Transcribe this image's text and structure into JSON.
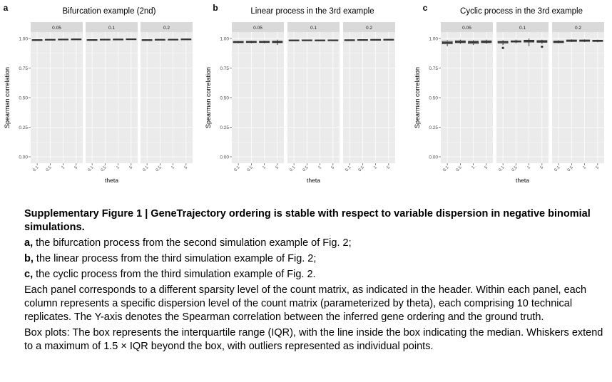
{
  "chart_data": [
    {
      "letter": "a",
      "type": "box",
      "title": "Bifurcation example (2nd)",
      "facets": [
        "0.05",
        "0.1",
        "0.2"
      ],
      "categories": [
        "0.1",
        "0.5",
        "1",
        "5"
      ],
      "xlabel": "theta",
      "ylabel": "Spearman correlation",
      "ylim": [
        0,
        1
      ],
      "yticks": [
        "0.00",
        "0.25",
        "0.50",
        "0.75",
        "1.00"
      ],
      "grid": true,
      "boxes": [
        [
          {
            "q1": 0.985,
            "median": 0.988,
            "q3": 0.99,
            "lo": 0.983,
            "hi": 0.992,
            "outliers": []
          },
          {
            "q1": 0.988,
            "median": 0.99,
            "q3": 0.993,
            "lo": 0.985,
            "hi": 0.995,
            "outliers": []
          },
          {
            "q1": 0.99,
            "median": 0.992,
            "q3": 0.995,
            "lo": 0.988,
            "hi": 0.997,
            "outliers": []
          },
          {
            "q1": 0.992,
            "median": 0.994,
            "q3": 0.996,
            "lo": 0.99,
            "hi": 0.998,
            "outliers": []
          }
        ],
        [
          {
            "q1": 0.986,
            "median": 0.989,
            "q3": 0.991,
            "lo": 0.984,
            "hi": 0.993,
            "outliers": []
          },
          {
            "q1": 0.989,
            "median": 0.991,
            "q3": 0.994,
            "lo": 0.986,
            "hi": 0.996,
            "outliers": []
          },
          {
            "q1": 0.991,
            "median": 0.993,
            "q3": 0.995,
            "lo": 0.989,
            "hi": 0.997,
            "outliers": []
          },
          {
            "q1": 0.993,
            "median": 0.995,
            "q3": 0.997,
            "lo": 0.991,
            "hi": 0.999,
            "outliers": []
          }
        ],
        [
          {
            "q1": 0.985,
            "median": 0.988,
            "q3": 0.99,
            "lo": 0.983,
            "hi": 0.992,
            "outliers": []
          },
          {
            "q1": 0.988,
            "median": 0.99,
            "q3": 0.993,
            "lo": 0.985,
            "hi": 0.995,
            "outliers": []
          },
          {
            "q1": 0.99,
            "median": 0.992,
            "q3": 0.994,
            "lo": 0.988,
            "hi": 0.996,
            "outliers": []
          },
          {
            "q1": 0.992,
            "median": 0.994,
            "q3": 0.996,
            "lo": 0.99,
            "hi": 0.998,
            "outliers": []
          }
        ]
      ]
    },
    {
      "letter": "b",
      "type": "box",
      "title": "Linear process in the 3rd example",
      "facets": [
        "0.05",
        "0.1",
        "0.2"
      ],
      "categories": [
        "0.1",
        "0.5",
        "1",
        "5"
      ],
      "xlabel": "theta",
      "ylabel": "Spearman correlation",
      "ylim": [
        0,
        1
      ],
      "yticks": [
        "0.00",
        "0.25",
        "0.50",
        "0.75",
        "1.00"
      ],
      "grid": true,
      "boxes": [
        [
          {
            "q1": 0.965,
            "median": 0.97,
            "q3": 0.975,
            "lo": 0.96,
            "hi": 0.98,
            "outliers": []
          },
          {
            "q1": 0.966,
            "median": 0.971,
            "q3": 0.976,
            "lo": 0.96,
            "hi": 0.981,
            "outliers": []
          },
          {
            "q1": 0.966,
            "median": 0.971,
            "q3": 0.976,
            "lo": 0.96,
            "hi": 0.981,
            "outliers": []
          },
          {
            "q1": 0.965,
            "median": 0.971,
            "q3": 0.977,
            "lo": 0.945,
            "hi": 0.99,
            "outliers": []
          }
        ],
        [
          {
            "q1": 0.982,
            "median": 0.985,
            "q3": 0.987,
            "lo": 0.98,
            "hi": 0.989,
            "outliers": []
          },
          {
            "q1": 0.983,
            "median": 0.986,
            "q3": 0.988,
            "lo": 0.98,
            "hi": 0.99,
            "outliers": []
          },
          {
            "q1": 0.983,
            "median": 0.985,
            "q3": 0.987,
            "lo": 0.981,
            "hi": 0.989,
            "outliers": []
          },
          {
            "q1": 0.983,
            "median": 0.986,
            "q3": 0.988,
            "lo": 0.981,
            "hi": 0.99,
            "outliers": []
          }
        ],
        [
          {
            "q1": 0.985,
            "median": 0.987,
            "q3": 0.989,
            "lo": 0.983,
            "hi": 0.991,
            "outliers": []
          },
          {
            "q1": 0.987,
            "median": 0.989,
            "q3": 0.991,
            "lo": 0.985,
            "hi": 0.993,
            "outliers": []
          },
          {
            "q1": 0.988,
            "median": 0.99,
            "q3": 0.992,
            "lo": 0.986,
            "hi": 0.994,
            "outliers": []
          },
          {
            "q1": 0.989,
            "median": 0.991,
            "q3": 0.993,
            "lo": 0.987,
            "hi": 0.995,
            "outliers": []
          }
        ]
      ]
    },
    {
      "letter": "c",
      "type": "box",
      "title": "Cyclic process in the 3rd example",
      "facets": [
        "0.05",
        "0.1",
        "0.2"
      ],
      "categories": [
        "0.1",
        "0.5",
        "1",
        "5"
      ],
      "xlabel": "theta",
      "ylabel": "Spearman correlation",
      "ylim": [
        0,
        1
      ],
      "yticks": [
        "0.00",
        "0.25",
        "0.50",
        "0.75",
        "1.00"
      ],
      "grid": true,
      "boxes": [
        [
          {
            "q1": 0.955,
            "median": 0.965,
            "q3": 0.975,
            "lo": 0.935,
            "hi": 0.985,
            "outliers": []
          },
          {
            "q1": 0.965,
            "median": 0.972,
            "q3": 0.98,
            "lo": 0.955,
            "hi": 0.99,
            "outliers": []
          },
          {
            "q1": 0.958,
            "median": 0.968,
            "q3": 0.976,
            "lo": 0.945,
            "hi": 0.985,
            "outliers": []
          },
          {
            "q1": 0.965,
            "median": 0.972,
            "q3": 0.98,
            "lo": 0.955,
            "hi": 0.99,
            "outliers": []
          }
        ],
        [
          {
            "q1": 0.962,
            "median": 0.97,
            "q3": 0.975,
            "lo": 0.945,
            "hi": 0.985,
            "outliers": [
              0.92
            ]
          },
          {
            "q1": 0.97,
            "median": 0.975,
            "q3": 0.98,
            "lo": 0.96,
            "hi": 0.99,
            "outliers": []
          },
          {
            "q1": 0.97,
            "median": 0.978,
            "q3": 0.985,
            "lo": 0.935,
            "hi": 1.0,
            "outliers": []
          },
          {
            "q1": 0.968,
            "median": 0.975,
            "q3": 0.982,
            "lo": 0.955,
            "hi": 0.99,
            "outliers": [
              0.93
            ]
          }
        ],
        [
          {
            "q1": 0.965,
            "median": 0.972,
            "q3": 0.978,
            "lo": 0.96,
            "hi": 0.985,
            "outliers": []
          },
          {
            "q1": 0.975,
            "median": 0.982,
            "q3": 0.987,
            "lo": 0.97,
            "hi": 0.992,
            "outliers": []
          },
          {
            "q1": 0.976,
            "median": 0.982,
            "q3": 0.987,
            "lo": 0.97,
            "hi": 0.992,
            "outliers": []
          },
          {
            "q1": 0.975,
            "median": 0.98,
            "q3": 0.985,
            "lo": 0.968,
            "hi": 0.99,
            "outliers": []
          }
        ]
      ]
    }
  ],
  "caption": {
    "title": "Supplementary Figure 1 | GeneTrajectory ordering is stable with respect to variable dispersion in negative binomial simulations.",
    "items": [
      {
        "letter": "a,",
        "text": " the bifurcation process from the second simulation example of Fig. 2;"
      },
      {
        "letter": "b,",
        "text": " the linear process from the third simulation example of Fig. 2;"
      },
      {
        "letter": "c,",
        "text": " the cyclic process from the third simulation example of Fig. 2."
      }
    ],
    "paragraph1": "Each panel corresponds to a different sparsity level of the count matrix, as indicated in the header. Within each panel, each column represents a specific dispersion level of the count matrix (parameterized by theta), each comprising 10 technical replicates. The Y-axis denotes the Spearman correlation between the inferred gene ordering and the ground truth.",
    "paragraph2": "Box plots: The box represents the interquartile range (IQR), with the line inside the box indicating the median. Whiskers extend to a maximum of 1.5 × IQR beyond the box, with outliers represented as individual points."
  },
  "colors": {
    "panel_bg": "#ebebeb",
    "strip_bg": "#d9d9d9",
    "grid": "#ffffff",
    "box_fill": "#ffffff",
    "box_stroke": "#333333",
    "axis_text": "#4d4d4d"
  }
}
